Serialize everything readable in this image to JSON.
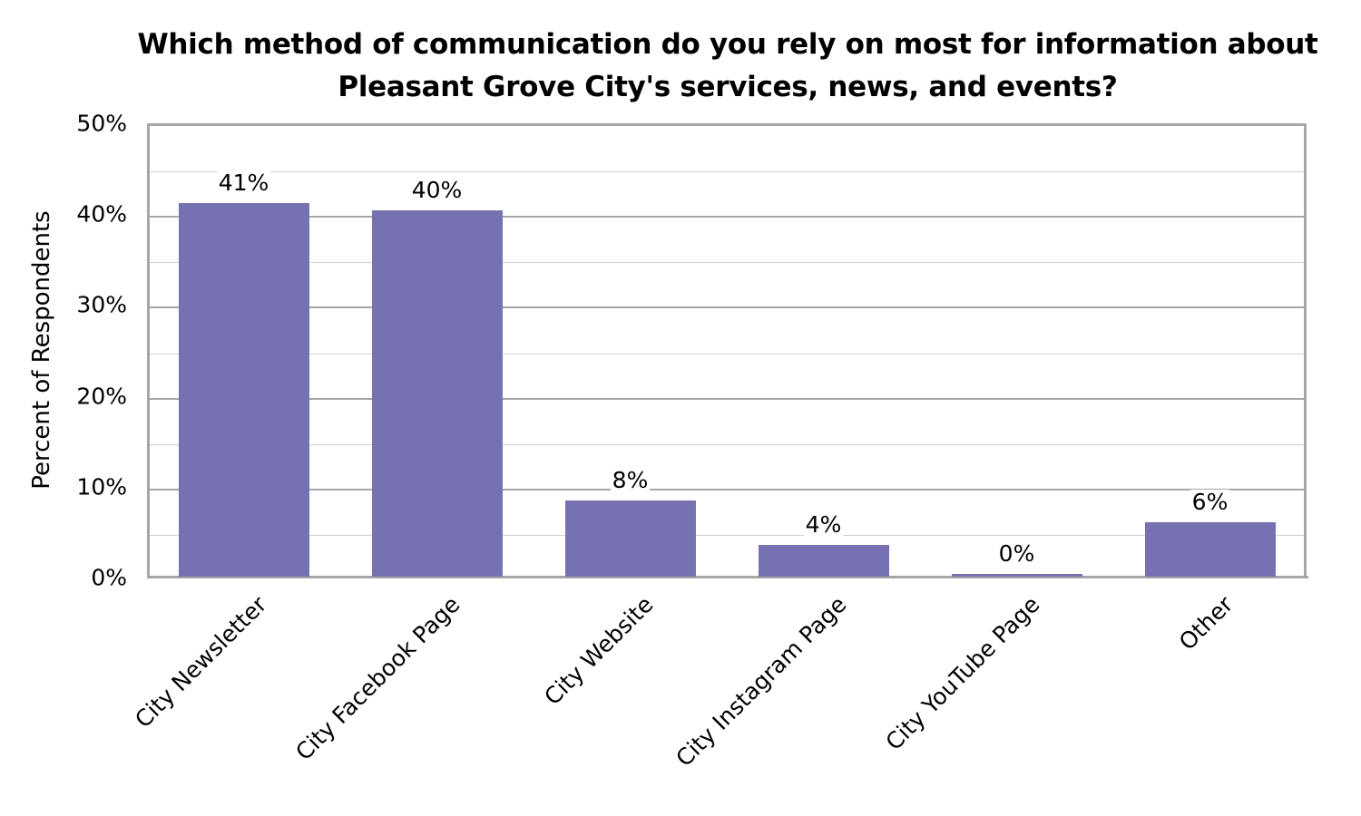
{
  "chart_data": {
    "type": "bar",
    "title": "Which method of communication do you rely on most for information about Pleasant Grove City's services, news, and events?",
    "title_lines": [
      "Which method of communication do you rely on most for information about",
      "Pleasant Grove City's services, news, and events?"
    ],
    "xlabel": "",
    "ylabel": "Percent of Respondents",
    "ylim": [
      0,
      50
    ],
    "yticks": [
      "0%",
      "10%",
      "20%",
      "30%",
      "40%",
      "50%"
    ],
    "grid": true,
    "legend": null,
    "bar_color": "#7672b1",
    "categories": [
      "City Newsletter",
      "City Facebook Page",
      "City Website",
      "City Instagram Page",
      "City YouTube Page",
      "Other"
    ],
    "values": [
      41.2,
      40.4,
      8.5,
      3.6,
      0.4,
      6.1
    ],
    "data_labels": [
      "41%",
      "40%",
      "8%",
      "4%",
      "0%",
      "6%"
    ]
  }
}
